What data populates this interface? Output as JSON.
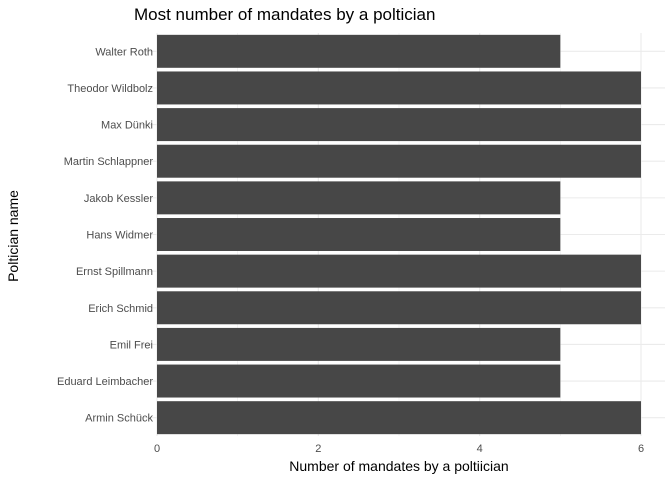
{
  "chart_data": {
    "type": "bar",
    "orientation": "horizontal",
    "title": "Most number of mandates by a poltician",
    "xlabel": "Number of mandates by a poltiician",
    "ylabel": "Poltician name",
    "categories": [
      "Walter Roth",
      "Theodor Wildbolz",
      "Max Dünki",
      "Martin Schlappner",
      "Jakob Kessler",
      "Hans Widmer",
      "Ernst Spillmann",
      "Erich Schmid",
      "Emil Frei",
      "Eduard Leimbacher",
      "Armin Schück"
    ],
    "values": [
      5,
      6,
      6,
      6,
      5,
      5,
      6,
      6,
      5,
      5,
      6
    ],
    "xlim": [
      0,
      6
    ],
    "xticks": [
      "0",
      "2",
      "4",
      "6"
    ],
    "grid": true,
    "legend": "none",
    "bar_color": "#474747",
    "grid_color": "#ebebeb"
  }
}
